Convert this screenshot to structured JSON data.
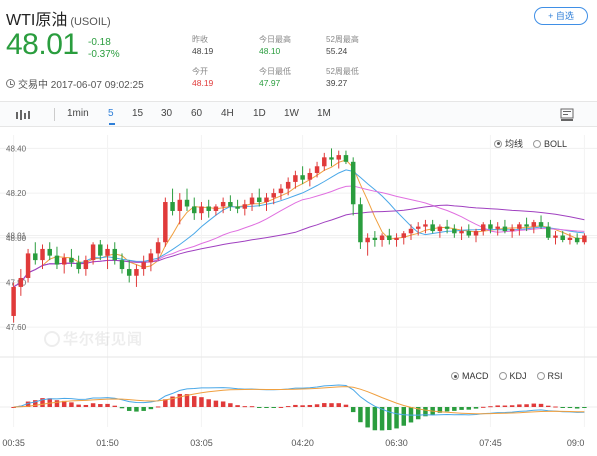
{
  "header": {
    "title": "WTI原油",
    "code": "(USOIL)",
    "watch_label": "+ 自选",
    "price": "48.01",
    "change": "-0.18",
    "change_pct": "-0.37%",
    "status": "交易中 2017-06-07 09:02:25"
  },
  "stats": {
    "prev_close_label": "昨收",
    "prev_close": "48.19",
    "day_high_label": "今日最高",
    "day_high": "48.10",
    "week52_high_label": "52周最高",
    "week52_high": "55.24",
    "open_label": "今开",
    "open": "48.19",
    "day_low_label": "今日最低",
    "day_low": "47.97",
    "week52_low_label": "52周最低",
    "week52_low": "39.27"
  },
  "toolbar": {
    "items": [
      "1min",
      "5",
      "15",
      "30",
      "60",
      "4H",
      "1D",
      "1W",
      "1M"
    ],
    "active": "5"
  },
  "main_options": {
    "ma_label": "均线",
    "boll_label": "BOLL",
    "selected": "均线"
  },
  "sub_options": {
    "macd_label": "MACD",
    "kdj_label": "KDJ",
    "rsi_label": "RSI",
    "selected": "MACD"
  },
  "watermark": "华尔街见闻",
  "colors": {
    "up": "#e03a3a",
    "down": "#2a9d3e",
    "accent": "#2f7fd8",
    "ma5": "#f0a040",
    "ma10": "#4aa8e8",
    "ma20": "#e070e0",
    "ma60": "#a040c0"
  },
  "chart_data": {
    "type": "candlestick",
    "price_axis": {
      "ticks": [
        "48.40",
        "48.20",
        "48.01",
        "48.00",
        "47.80",
        "47.60"
      ],
      "values": [
        48.4,
        48.2,
        48.01,
        48.0,
        47.8,
        47.6
      ],
      "ylim": [
        47.52,
        48.46
      ]
    },
    "x_ticks": [
      "00:35",
      "01:50",
      "03:05",
      "04:20",
      "06:30",
      "07:45",
      "09:0"
    ],
    "candles": [
      [
        47.65,
        47.8,
        47.62,
        47.78
      ],
      [
        47.78,
        47.86,
        47.74,
        47.82
      ],
      [
        47.82,
        47.95,
        47.8,
        47.93
      ],
      [
        47.93,
        47.98,
        47.88,
        47.9
      ],
      [
        47.9,
        47.97,
        47.86,
        47.95
      ],
      [
        47.95,
        47.98,
        47.9,
        47.92
      ],
      [
        47.92,
        47.96,
        47.86,
        47.88
      ],
      [
        47.88,
        47.93,
        47.84,
        47.91
      ],
      [
        47.91,
        47.95,
        47.87,
        47.89
      ],
      [
        47.89,
        47.92,
        47.84,
        47.86
      ],
      [
        47.86,
        47.92,
        47.83,
        47.9
      ],
      [
        47.9,
        47.98,
        47.88,
        47.97
      ],
      [
        47.97,
        47.99,
        47.9,
        47.92
      ],
      [
        47.92,
        47.97,
        47.86,
        47.95
      ],
      [
        47.95,
        47.98,
        47.88,
        47.9
      ],
      [
        47.9,
        47.93,
        47.84,
        47.86
      ],
      [
        47.86,
        47.9,
        47.8,
        47.83
      ],
      [
        47.83,
        47.88,
        47.78,
        47.86
      ],
      [
        47.86,
        47.92,
        47.83,
        47.89
      ],
      [
        47.89,
        47.95,
        47.85,
        47.93
      ],
      [
        47.93,
        48.0,
        47.9,
        47.98
      ],
      [
        47.98,
        48.18,
        47.96,
        48.16
      ],
      [
        48.16,
        48.22,
        48.1,
        48.12
      ],
      [
        48.12,
        48.2,
        48.06,
        48.17
      ],
      [
        48.17,
        48.22,
        48.12,
        48.14
      ],
      [
        48.14,
        48.18,
        48.08,
        48.11
      ],
      [
        48.11,
        48.16,
        48.08,
        48.14
      ],
      [
        48.14,
        48.17,
        48.09,
        48.12
      ],
      [
        48.12,
        48.15,
        48.1,
        48.14
      ],
      [
        48.14,
        48.18,
        48.11,
        48.16
      ],
      [
        48.16,
        48.19,
        48.12,
        48.14
      ],
      [
        48.14,
        48.17,
        48.11,
        48.13
      ],
      [
        48.13,
        48.17,
        48.1,
        48.15
      ],
      [
        48.15,
        48.2,
        48.12,
        48.18
      ],
      [
        48.18,
        48.22,
        48.14,
        48.16
      ],
      [
        48.16,
        48.2,
        48.12,
        48.18
      ],
      [
        48.18,
        48.22,
        48.15,
        48.2
      ],
      [
        48.2,
        48.24,
        48.17,
        48.22
      ],
      [
        48.22,
        48.27,
        48.19,
        48.25
      ],
      [
        48.25,
        48.3,
        48.22,
        48.28
      ],
      [
        48.28,
        48.32,
        48.24,
        48.26
      ],
      [
        48.26,
        48.31,
        48.23,
        48.29
      ],
      [
        48.29,
        48.34,
        48.27,
        48.32
      ],
      [
        48.32,
        48.38,
        48.3,
        48.36
      ],
      [
        48.36,
        48.4,
        48.32,
        48.35
      ],
      [
        48.35,
        48.39,
        48.31,
        48.37
      ],
      [
        48.37,
        48.39,
        48.33,
        48.34
      ],
      [
        48.34,
        48.36,
        48.1,
        48.15
      ],
      [
        48.15,
        48.18,
        47.95,
        47.98
      ],
      [
        47.98,
        48.02,
        47.92,
        48.0
      ],
      [
        48.0,
        48.03,
        47.96,
        47.99
      ],
      [
        47.99,
        48.02,
        47.96,
        48.01
      ],
      [
        48.01,
        48.04,
        47.97,
        47.99
      ],
      [
        47.99,
        48.02,
        47.96,
        48.0
      ],
      [
        48.0,
        48.03,
        47.97,
        48.02
      ],
      [
        48.02,
        48.06,
        47.99,
        48.04
      ],
      [
        48.04,
        48.07,
        48.01,
        48.05
      ],
      [
        48.05,
        48.08,
        48.02,
        48.06
      ],
      [
        48.06,
        48.08,
        48.02,
        48.03
      ],
      [
        48.03,
        48.06,
        48.0,
        48.05
      ],
      [
        48.05,
        48.08,
        48.02,
        48.04
      ],
      [
        48.04,
        48.06,
        48.0,
        48.02
      ],
      [
        48.02,
        48.05,
        47.99,
        48.03
      ],
      [
        48.03,
        48.06,
        48.0,
        48.01
      ],
      [
        48.01,
        48.04,
        47.98,
        48.03
      ],
      [
        48.03,
        48.07,
        48.01,
        48.06
      ],
      [
        48.06,
        48.08,
        48.02,
        48.04
      ],
      [
        48.04,
        48.07,
        48.01,
        48.05
      ],
      [
        48.05,
        48.08,
        48.02,
        48.03
      ],
      [
        48.03,
        48.06,
        48.0,
        48.04
      ],
      [
        48.04,
        48.07,
        48.01,
        48.06
      ],
      [
        48.06,
        48.09,
        48.03,
        48.05
      ],
      [
        48.05,
        48.08,
        48.02,
        48.07
      ],
      [
        48.07,
        48.1,
        48.04,
        48.05
      ],
      [
        48.05,
        48.07,
        47.99,
        48.0
      ],
      [
        48.0,
        48.03,
        47.97,
        48.01
      ],
      [
        48.01,
        48.03,
        47.98,
        47.99
      ],
      [
        47.99,
        48.02,
        47.97,
        48.0
      ],
      [
        48.0,
        48.02,
        47.97,
        47.98
      ],
      [
        47.98,
        48.02,
        47.97,
        48.01
      ]
    ]
  }
}
